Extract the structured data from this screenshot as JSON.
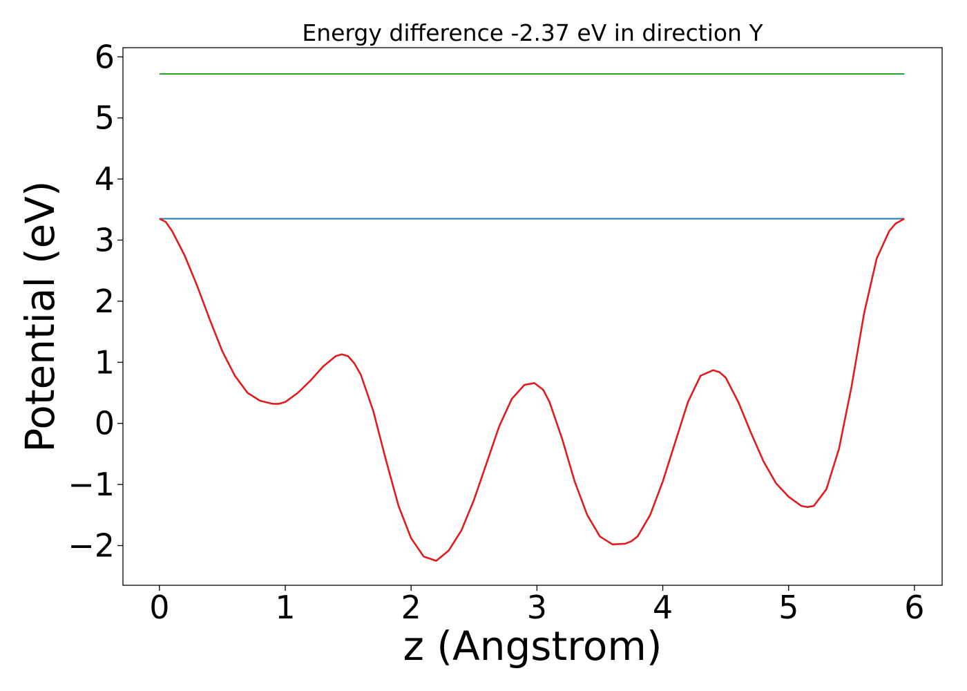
{
  "chart_data": {
    "type": "line",
    "title": "Energy difference -2.37 eV in direction Y",
    "xlabel": "z (Angstrom)",
    "ylabel": "Potential (eV)",
    "xlim": [
      -0.29,
      6.22
    ],
    "ylim": [
      -2.65,
      6.15
    ],
    "xticks": [
      0,
      1,
      2,
      3,
      4,
      5,
      6
    ],
    "yticks": [
      -2,
      -1,
      0,
      1,
      2,
      3,
      4,
      5,
      6
    ],
    "xtick_labels": [
      "0",
      "1",
      "2",
      "3",
      "4",
      "5",
      "6"
    ],
    "ytick_labels": [
      "−2",
      "−1",
      "0",
      "1",
      "2",
      "3",
      "4",
      "5",
      "6"
    ],
    "grid": false,
    "legend": "none",
    "series": [
      {
        "color": "#2ca02c",
        "x": [
          0,
          5.92
        ],
        "y": [
          5.72,
          5.72
        ]
      },
      {
        "color": "#1f77b4",
        "x": [
          0,
          5.92
        ],
        "y": [
          3.35,
          3.35
        ]
      },
      {
        "color": "#e31a1c",
        "x": [
          0.0,
          0.05,
          0.1,
          0.2,
          0.3,
          0.4,
          0.5,
          0.6,
          0.7,
          0.8,
          0.9,
          0.95,
          1.0,
          1.1,
          1.2,
          1.3,
          1.4,
          1.45,
          1.5,
          1.55,
          1.6,
          1.7,
          1.8,
          1.9,
          2.0,
          2.1,
          2.2,
          2.3,
          2.4,
          2.5,
          2.6,
          2.7,
          2.8,
          2.9,
          2.98,
          3.05,
          3.1,
          3.2,
          3.3,
          3.4,
          3.5,
          3.6,
          3.7,
          3.75,
          3.8,
          3.9,
          4.0,
          4.1,
          4.2,
          4.3,
          4.4,
          4.45,
          4.5,
          4.6,
          4.7,
          4.8,
          4.9,
          5.0,
          5.1,
          5.15,
          5.2,
          5.3,
          5.4,
          5.5,
          5.6,
          5.7,
          5.8,
          5.85,
          5.92
        ],
        "y": [
          3.35,
          3.3,
          3.15,
          2.75,
          2.25,
          1.7,
          1.18,
          0.78,
          0.5,
          0.37,
          0.32,
          0.32,
          0.35,
          0.5,
          0.7,
          0.93,
          1.1,
          1.13,
          1.1,
          0.98,
          0.8,
          0.2,
          -0.6,
          -1.35,
          -1.88,
          -2.18,
          -2.25,
          -2.08,
          -1.75,
          -1.25,
          -0.65,
          -0.05,
          0.4,
          0.63,
          0.66,
          0.55,
          0.35,
          -0.25,
          -0.95,
          -1.5,
          -1.85,
          -1.98,
          -1.97,
          -1.93,
          -1.85,
          -1.5,
          -0.95,
          -0.3,
          0.35,
          0.78,
          0.87,
          0.84,
          0.75,
          0.35,
          -0.15,
          -0.62,
          -0.98,
          -1.2,
          -1.35,
          -1.37,
          -1.35,
          -1.08,
          -0.42,
          0.6,
          1.8,
          2.7,
          3.15,
          3.27,
          3.35
        ]
      }
    ]
  }
}
